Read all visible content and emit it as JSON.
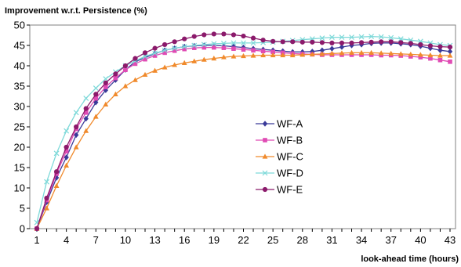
{
  "chart_data": {
    "type": "line",
    "title": "",
    "ylabel": "Improvement w.r.t. Persistence (%)",
    "xlabel": "look-ahead time (hours)",
    "ylim": [
      0,
      50
    ],
    "xlim": [
      1,
      43
    ],
    "y_ticks": [
      0,
      5,
      10,
      15,
      20,
      25,
      30,
      35,
      40,
      45,
      50
    ],
    "x_ticks": [
      1,
      4,
      7,
      10,
      13,
      16,
      19,
      22,
      25,
      28,
      31,
      34,
      37,
      40,
      43
    ],
    "grid": "none",
    "legend_position": "right-center",
    "x": [
      1,
      2,
      3,
      4,
      5,
      6,
      7,
      8,
      9,
      10,
      11,
      12,
      13,
      14,
      15,
      16,
      17,
      18,
      19,
      20,
      21,
      22,
      23,
      24,
      25,
      26,
      27,
      28,
      29,
      30,
      31,
      32,
      33,
      34,
      35,
      36,
      37,
      38,
      39,
      40,
      41,
      42,
      43
    ],
    "series": [
      {
        "name": "WF-A",
        "color": "#3a3a99",
        "marker": "diamond",
        "values": [
          0,
          6.5,
          12.5,
          17.5,
          23,
          27,
          31,
          34,
          36.5,
          39,
          41,
          42,
          43,
          43.8,
          44.3,
          44.7,
          44.9,
          45,
          45,
          44.9,
          44.7,
          44.5,
          44.2,
          44,
          43.8,
          43.6,
          43.4,
          43.4,
          43.5,
          43.8,
          44.2,
          44.6,
          45,
          45.2,
          45.5,
          45.6,
          45.6,
          45.4,
          45.2,
          44.8,
          44.3,
          43.8,
          43.5
        ]
      },
      {
        "name": "WF-B",
        "color": "#e04bb4",
        "marker": "square",
        "values": [
          0,
          7,
          13.5,
          19,
          24.5,
          28.5,
          32,
          34.8,
          37,
          39,
          40.5,
          41.6,
          42.5,
          43.2,
          43.7,
          44.1,
          44.4,
          44.5,
          44.5,
          44.4,
          44.2,
          44,
          43.8,
          43.6,
          43.4,
          43.2,
          43,
          42.9,
          42.8,
          42.7,
          42.7,
          42.7,
          42.7,
          42.7,
          42.7,
          42.6,
          42.6,
          42.5,
          42.3,
          42.1,
          41.8,
          41.4,
          41
        ]
      },
      {
        "name": "WF-C",
        "color": "#f08a2c",
        "marker": "triangle",
        "values": [
          0,
          5,
          10.5,
          15.5,
          20,
          24,
          27.5,
          30.5,
          33,
          35,
          36.5,
          37.8,
          38.8,
          39.6,
          40.2,
          40.7,
          41.1,
          41.5,
          41.8,
          42.1,
          42.3,
          42.4,
          42.5,
          42.6,
          42.6,
          42.6,
          42.6,
          42.7,
          42.8,
          42.9,
          43,
          43.1,
          43.2,
          43.2,
          43.2,
          43.1,
          43,
          42.9,
          42.8,
          42.7,
          42.6,
          42.5,
          42.5
        ]
      },
      {
        "name": "WF-D",
        "color": "#7ed9d9",
        "marker": "cross",
        "values": [
          1.5,
          11.5,
          18.5,
          24,
          28.5,
          32,
          34.5,
          36.8,
          38.5,
          40,
          41.2,
          42.3,
          43.1,
          43.8,
          44.3,
          44.7,
          45,
          45.2,
          45.4,
          45.5,
          45.6,
          45.6,
          45.6,
          45.7,
          45.8,
          46,
          46.2,
          46.4,
          46.6,
          46.8,
          47,
          47,
          47,
          47.1,
          47.2,
          47.1,
          46.9,
          46.6,
          46.3,
          46,
          45.6,
          45.2,
          45
        ]
      },
      {
        "name": "WF-E",
        "color": "#8b1a6b",
        "marker": "circle",
        "values": [
          0,
          7.5,
          14,
          20,
          25,
          29.5,
          33,
          35.8,
          38,
          40,
          41.8,
          43.2,
          44.3,
          45.2,
          45.9,
          46.6,
          47.2,
          47.6,
          47.8,
          47.8,
          47.6,
          47.3,
          46.8,
          46.3,
          46,
          45.9,
          45.9,
          45.8,
          45.8,
          45.7,
          45.6,
          45.6,
          45.6,
          45.7,
          45.8,
          45.9,
          45.9,
          45.7,
          45.5,
          45.2,
          44.9,
          44.7,
          44.6
        ]
      }
    ]
  }
}
